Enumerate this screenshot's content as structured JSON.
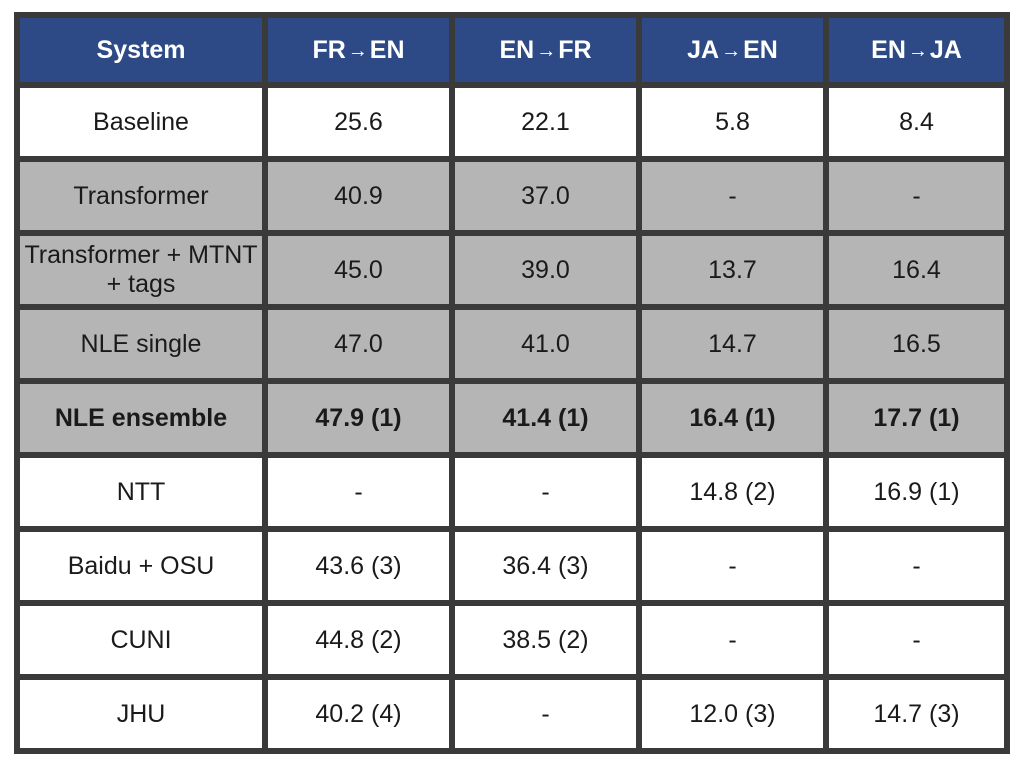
{
  "table": {
    "frame_color": "#3a3a3a",
    "header_bg": "#2d4a86",
    "header_fg": "#ffffff",
    "body_fg": "#1a1a1a",
    "shade_bg": "#b5b5b5",
    "columns": {
      "system": "System",
      "fr_en_a": "FR",
      "fr_en_b": "EN",
      "en_fr_a": "EN",
      "en_fr_b": "FR",
      "ja_en_a": "JA",
      "ja_en_b": "EN",
      "en_ja_a": "EN",
      "en_ja_b": "JA"
    },
    "rows": [
      {
        "system": "Baseline",
        "fr_en": "25.6",
        "en_fr": "22.1",
        "ja_en": "5.8",
        "en_ja": "8.4",
        "shaded": false,
        "bold": false
      },
      {
        "system": "Transformer",
        "fr_en": "40.9",
        "en_fr": "37.0",
        "ja_en": "-",
        "en_ja": "-",
        "shaded": true,
        "bold": false
      },
      {
        "system": "Transformer + MTNT\n+ tags",
        "fr_en": "45.0",
        "en_fr": "39.0",
        "ja_en": "13.7",
        "en_ja": "16.4",
        "shaded": true,
        "bold": false
      },
      {
        "system": "NLE single",
        "fr_en": "47.0",
        "en_fr": "41.0",
        "ja_en": "14.7",
        "en_ja": "16.5",
        "shaded": true,
        "bold": false
      },
      {
        "system": "NLE ensemble",
        "fr_en": "47.9 (1)",
        "en_fr": "41.4 (1)",
        "ja_en": "16.4 (1)",
        "en_ja": "17.7 (1)",
        "shaded": true,
        "bold": true
      },
      {
        "system": "NTT",
        "fr_en": "-",
        "en_fr": "-",
        "ja_en": "14.8 (2)",
        "en_ja": "16.9 (1)",
        "shaded": false,
        "bold": false
      },
      {
        "system": "Baidu + OSU",
        "fr_en": "43.6 (3)",
        "en_fr": "36.4 (3)",
        "ja_en": "-",
        "en_ja": "-",
        "shaded": false,
        "bold": false
      },
      {
        "system": "CUNI",
        "fr_en": "44.8 (2)",
        "en_fr": "38.5 (2)",
        "ja_en": "-",
        "en_ja": "-",
        "shaded": false,
        "bold": false
      },
      {
        "system": "JHU",
        "fr_en": "40.2 (4)",
        "en_fr": "-",
        "ja_en": "12.0 (3)",
        "en_ja": "14.7 (3)",
        "shaded": false,
        "bold": false
      }
    ]
  }
}
